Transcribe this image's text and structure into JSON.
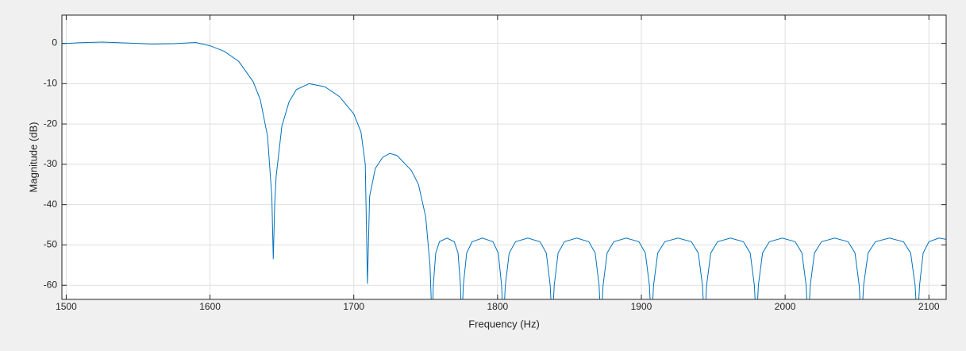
{
  "chart_data": {
    "type": "line",
    "xlabel": "Frequency (Hz)",
    "ylabel": "Magnitude (dB)",
    "x": [
      1497,
      1510,
      1525,
      1540,
      1560,
      1575,
      1590,
      1600,
      1610,
      1620,
      1630,
      1635,
      1640,
      1643,
      1644,
      1645,
      1646,
      1650,
      1655,
      1660,
      1669,
      1680,
      1690,
      1700,
      1705,
      1708,
      1709.5,
      1711,
      1715,
      1720,
      1725,
      1730,
      1740,
      1745,
      1750,
      1753,
      1754.5,
      1755.3,
      1757,
      1759.6,
      1764.8,
      1769.9,
      1772.5,
      1774.2,
      1775,
      1776.2,
      1778.5,
      1782.3,
      1789.5,
      1796.8,
      1800.5,
      1802.8,
      1804,
      1805.4,
      1808.1,
      1812.5,
      1821,
      1829.5,
      1833.9,
      1836.6,
      1838,
      1839.4,
      1842.1,
      1846.5,
      1855,
      1863.5,
      1867.9,
      1870.6,
      1872,
      1873.4,
      1876.2,
      1880.8,
      1889.5,
      1898.3,
      1902.8,
      1905.6,
      1907,
      1908.5,
      1911.4,
      1916.3,
      1925.5,
      1934.8,
      1939.6,
      1942.5,
      1944,
      1945.4,
      1948.3,
      1953,
      1962,
      1971,
      1975.7,
      1978.6,
      1980,
      1981.4,
      1984.3,
      1989,
      1998,
      2007,
      2011.7,
      2014.6,
      2016,
      2017.5,
      2020.4,
      2025.3,
      2034.5,
      2043.8,
      2048.6,
      2051.5,
      2053,
      2054.6,
      2057.7,
      2062.8,
      2072.5,
      2082.3,
      2087.3,
      2090.4,
      2092,
      2093.5,
      2096,
      2100,
      2107,
      2112
    ],
    "series": [
      {
        "color": "#0072bd",
        "values": [
          -0.1,
          0.15,
          0.3,
          0.1,
          -0.2,
          -0.1,
          0.2,
          -0.6,
          -2,
          -4.5,
          -9.5,
          -14,
          -23,
          -38,
          -53.5,
          -40,
          -33,
          -20.5,
          -14.5,
          -11.5,
          -10,
          -10.8,
          -13.2,
          -17.5,
          -22,
          -30,
          -59.6,
          -38,
          -31,
          -28.3,
          -27.3,
          -27.8,
          -31.5,
          -35,
          -43,
          -55,
          -70,
          -60,
          -52,
          -49.2,
          -48.3,
          -49.2,
          -52,
          -60,
          -70,
          -60,
          -52,
          -49.2,
          -48.3,
          -49.2,
          -52,
          -60,
          -70,
          -60,
          -52,
          -49.2,
          -48.3,
          -49.2,
          -52,
          -60,
          -70,
          -60,
          -52,
          -49.2,
          -48.3,
          -49.2,
          -52,
          -60,
          -70,
          -60,
          -52,
          -49.2,
          -48.3,
          -49.2,
          -52,
          -60,
          -70,
          -60,
          -52,
          -49.2,
          -48.3,
          -49.2,
          -52,
          -60,
          -70,
          -60,
          -52,
          -49.2,
          -48.3,
          -49.2,
          -52,
          -60,
          -70,
          -60,
          -52,
          -49.2,
          -48.3,
          -49.2,
          -52,
          -60,
          -70,
          -60,
          -52,
          -49.2,
          -48.3,
          -49.2,
          -52,
          -60,
          -70,
          -60,
          -52,
          -49.2,
          -48.3,
          -49.2,
          -52,
          -60,
          -70,
          -60,
          -52,
          -49.2,
          -48.3,
          -48.6
        ]
      }
    ],
    "xlim": [
      1497,
      2112
    ],
    "ylim": [
      -63.5,
      7
    ],
    "xticks": [
      1500,
      1600,
      1700,
      1800,
      1900,
      2000,
      2100
    ],
    "yticks": [
      0,
      -10,
      -20,
      -30,
      -40,
      -50,
      -60
    ],
    "grid": true
  }
}
